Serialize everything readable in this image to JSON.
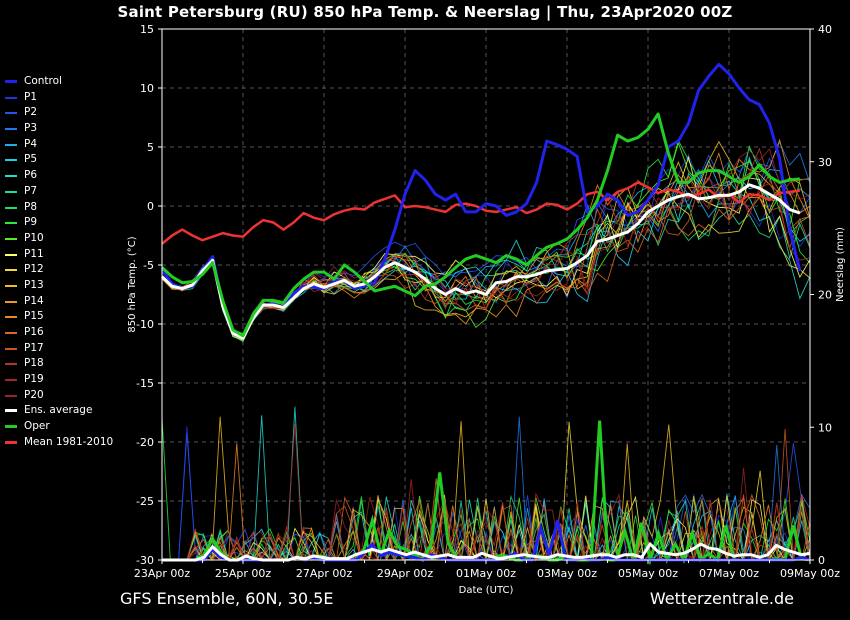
{
  "header": {
    "title": "Saint Petersburg  (RU)  850 hPa Temp. & Neerslag | Thu, 23Apr2020 00Z"
  },
  "footer": {
    "model": "GFS Ensemble, 60N, 30.5E",
    "site": "Wetterzentrale.de"
  },
  "legend": [
    {
      "label": "Control",
      "color": "#2222ee",
      "thick": true
    },
    {
      "label": "P1",
      "color": "#2233dd"
    },
    {
      "label": "P2",
      "color": "#2255ee"
    },
    {
      "label": "P3",
      "color": "#2277ee"
    },
    {
      "label": "P4",
      "color": "#22aaee"
    },
    {
      "label": "P5",
      "color": "#22ccee"
    },
    {
      "label": "P6",
      "color": "#22ddcc"
    },
    {
      "label": "P7",
      "color": "#22dd99"
    },
    {
      "label": "P8",
      "color": "#22dd66"
    },
    {
      "label": "P9",
      "color": "#22ee33"
    },
    {
      "label": "P10",
      "color": "#55ee22"
    },
    {
      "label": "P11",
      "color": "#ffff66"
    },
    {
      "label": "P12",
      "color": "#eedd33"
    },
    {
      "label": "P13",
      "color": "#eebb22"
    },
    {
      "label": "P14",
      "color": "#ee9922"
    },
    {
      "label": "P15",
      "color": "#ee8822"
    },
    {
      "label": "P16",
      "color": "#dd6622"
    },
    {
      "label": "P17",
      "color": "#cc5522"
    },
    {
      "label": "P18",
      "color": "#bb3322"
    },
    {
      "label": "P19",
      "color": "#aa2222"
    },
    {
      "label": "P20",
      "color": "#992222"
    },
    {
      "label": "Ens. average",
      "color": "#ffffff",
      "thick": true
    },
    {
      "label": "Oper",
      "color": "#22cc22",
      "thick": true
    },
    {
      "label": "Mean 1981-2010",
      "color": "#ee3333",
      "thick": true
    }
  ],
  "chart_data": {
    "type": "line",
    "xlabel": "Date (UTC)",
    "ylabel": "850 hPa Temp. (°C)",
    "y2label": "Neerslag (mm)",
    "ylim": [
      -30,
      15
    ],
    "y2lim": [
      0,
      40
    ],
    "yticks": [
      15,
      10,
      5,
      0,
      -5,
      -10,
      -15,
      -20,
      -25,
      -30
    ],
    "y2ticks": [
      40,
      30,
      20,
      10,
      0
    ],
    "xticks": [
      "23Apr 00z",
      "25Apr 00z",
      "27Apr 00z",
      "29Apr 00z",
      "01May 00z",
      "03May 00z",
      "05May 00z",
      "07May 00z",
      "09May 00z"
    ],
    "x_step_hours": 6,
    "grid": true,
    "series": [
      {
        "name": "Mean 1981-2010",
        "axis": "temp",
        "color": "#ee3333",
        "width": 2.5,
        "values": [
          -3.2,
          -2.5,
          -2.0,
          -2.5,
          -2.9,
          -2.6,
          -2.3,
          -2.5,
          -2.6,
          -1.8,
          -1.2,
          -1.4,
          -2.0,
          -1.4,
          -0.6,
          -1.0,
          -1.2,
          -0.7,
          -0.4,
          -0.2,
          -0.3,
          0.3,
          0.6,
          0.9,
          -0.1,
          0.0,
          -0.1,
          -0.3,
          -0.5,
          0.1,
          0.2,
          0.0,
          -0.4,
          -0.5,
          -0.3,
          -0.1,
          -0.6,
          -0.3,
          0.2,
          0.1,
          -0.3,
          0.2,
          1.0,
          1.2,
          0.5,
          1.2,
          1.5,
          2.0,
          1.6,
          1.1,
          1.4,
          1.2,
          0.8,
          1.0,
          1.4,
          0.7,
          1.0,
          0.3,
          1.0,
          0.9,
          0.5,
          1.1,
          1.2,
          1.3
        ]
      },
      {
        "name": "Control",
        "axis": "temp",
        "color": "#2222ee",
        "width": 3,
        "values": [
          -5.4,
          -6.6,
          -7.0,
          -6.8,
          -5.5,
          -4.3,
          -8.3,
          -10.8,
          -11.2,
          -9.4,
          -8.4,
          -8.3,
          -8.6,
          -7.4,
          -6.8,
          -6.9,
          -7.0,
          -6.4,
          -6.3,
          -7.0,
          -6.8,
          -6.5,
          -4.5,
          -2.0,
          1.0,
          3.0,
          2.2,
          1.0,
          0.5,
          1.0,
          -0.5,
          -0.5,
          0.2,
          0.0,
          -0.8,
          -0.5,
          0.2,
          2.0,
          5.5,
          5.2,
          4.8,
          4.2,
          -0.5,
          0.0,
          1.0,
          0.5,
          -0.8,
          -0.5,
          0.5,
          1.8,
          5.0,
          5.5,
          7.0,
          9.8,
          11.0,
          12.0,
          11.2,
          10.0,
          9.0,
          8.6,
          7.0,
          4.0,
          -2.0,
          -5.5
        ]
      },
      {
        "name": "Ens. average",
        "axis": "temp",
        "color": "#ffffff",
        "width": 3,
        "values": [
          -6.0,
          -6.8,
          -7.0,
          -6.7,
          -5.5,
          -4.6,
          -8.5,
          -10.8,
          -11.2,
          -9.5,
          -8.4,
          -8.4,
          -8.6,
          -7.8,
          -7.0,
          -6.6,
          -6.9,
          -6.6,
          -6.3,
          -6.8,
          -6.6,
          -6.0,
          -5.2,
          -4.8,
          -5.2,
          -5.6,
          -6.2,
          -7.0,
          -7.5,
          -7.0,
          -7.4,
          -7.2,
          -7.5,
          -6.5,
          -6.4,
          -6.0,
          -6.0,
          -5.8,
          -5.5,
          -5.4,
          -5.3,
          -4.8,
          -4.2,
          -3.0,
          -2.8,
          -2.5,
          -2.2,
          -1.5,
          -0.5,
          0.0,
          0.5,
          0.8,
          1.0,
          0.6,
          0.7,
          0.9,
          0.9,
          1.2,
          1.8,
          1.5,
          1.0,
          0.5,
          -0.3,
          -0.6
        ]
      },
      {
        "name": "Oper",
        "axis": "temp",
        "color": "#22cc22",
        "width": 3,
        "values": [
          -5.2,
          -6.0,
          -6.5,
          -6.4,
          -5.8,
          -4.8,
          -8.0,
          -10.5,
          -11.0,
          -9.2,
          -8.0,
          -8.0,
          -8.2,
          -7.0,
          -6.2,
          -5.6,
          -5.6,
          -6.2,
          -5.0,
          -5.6,
          -6.4,
          -7.2,
          -7.0,
          -6.8,
          -7.2,
          -7.6,
          -6.8,
          -6.6,
          -6.0,
          -5.2,
          -4.5,
          -4.2,
          -4.5,
          -4.8,
          -4.2,
          -4.5,
          -5.0,
          -4.2,
          -3.5,
          -3.2,
          -2.8,
          -2.0,
          -1.0,
          0.5,
          3.0,
          6.0,
          5.5,
          5.8,
          6.5,
          7.8,
          4.5,
          2.0,
          2.0,
          2.8,
          3.0,
          3.0,
          2.5,
          2.0,
          2.5,
          3.5,
          2.5,
          2.0,
          2.2,
          2.3
        ]
      }
    ],
    "precip_series": [
      {
        "name": "Oper",
        "color": "#22cc22",
        "width": 3,
        "values": [
          0,
          0,
          0,
          0,
          0,
          0.4,
          1.6,
          0.6,
          0,
          0,
          0.3,
          0,
          0,
          0,
          0,
          0,
          0.2,
          0,
          0.3,
          0.3,
          0,
          0,
          0,
          0,
          0.8,
          3.0,
          0.4,
          2.2,
          1.0,
          0.8,
          0.4,
          0,
          1.2,
          6.6,
          1.3,
          0.2,
          0.2,
          0,
          0,
          0,
          0.3,
          0.3,
          0,
          0,
          0.3,
          0.3,
          0,
          0,
          0.3,
          0,
          0,
          0,
          10.5,
          0,
          0,
          2.2,
          0,
          2.8,
          0,
          2.0,
          0,
          1.2,
          0,
          2.0,
          0,
          0.5,
          0,
          2.6,
          0,
          0,
          0,
          0,
          0,
          0.1,
          0,
          2.6,
          0.1,
          0
        ]
      },
      {
        "name": "Control",
        "color": "#2222ee",
        "width": 3,
        "values": [
          0,
          0,
          0,
          0,
          0,
          0,
          0.8,
          0.2,
          0,
          0,
          0,
          0,
          0,
          0,
          0,
          0,
          0.2,
          0,
          0.2,
          0,
          0,
          0,
          0,
          0,
          0.5,
          1.2,
          0.3,
          0.6,
          0.4,
          0.3,
          0.2,
          0,
          0.4,
          0.2,
          0,
          0,
          0,
          0,
          0,
          0,
          0,
          0.2,
          0.5,
          0,
          0,
          2.4,
          0.4,
          3.0,
          0,
          0,
          0.1,
          0,
          0,
          0.2,
          0,
          0,
          0,
          0,
          0,
          0,
          0,
          0,
          0,
          0,
          0,
          0,
          0,
          0,
          0,
          0,
          0,
          0,
          0,
          0,
          0,
          0,
          0.2,
          0
        ]
      },
      {
        "name": "Ens. average",
        "color": "#ffffff",
        "width": 3,
        "values": [
          0,
          0,
          0,
          0,
          0,
          0.2,
          1.0,
          0.4,
          0,
          0,
          0.3,
          0.1,
          0,
          0,
          0,
          0,
          0.2,
          0.1,
          0.3,
          0.2,
          0.1,
          0.1,
          0.1,
          0.4,
          0.6,
          0.8,
          0.6,
          0.8,
          0.6,
          0.4,
          0.6,
          0.4,
          0.2,
          0.3,
          0.4,
          0.2,
          0.2,
          0.2,
          0.5,
          0.3,
          0.1,
          0.2,
          0.3,
          0.4,
          0.3,
          0.2,
          0.2,
          0.4,
          0.3,
          0.2,
          0.2,
          0.3,
          0.4,
          0.4,
          0.2,
          0.4,
          0.4,
          0.2,
          1.2,
          0.6,
          0.5,
          0.4,
          0.5,
          0.8,
          1.2,
          0.9,
          0.8,
          0.5,
          0.3,
          0.4,
          0.4,
          0.2,
          0.4,
          1.1,
          0.8,
          0.6,
          0.4,
          0.5
        ]
      }
    ]
  }
}
